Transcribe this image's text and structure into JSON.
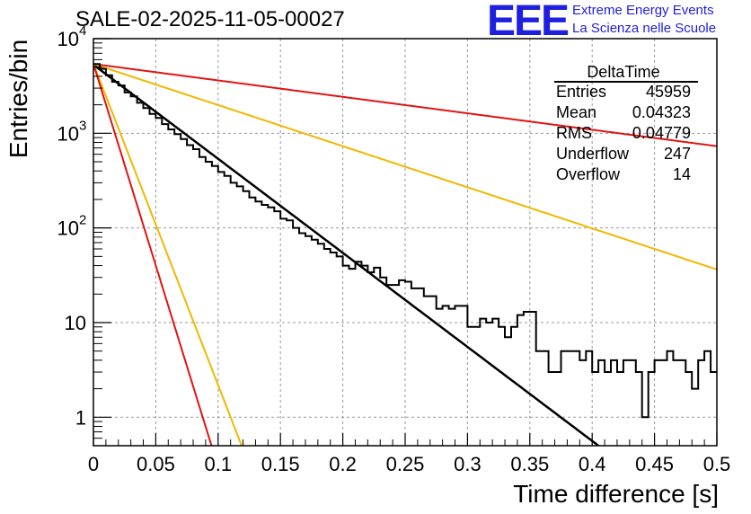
{
  "header": {
    "title": "SALE-02-2025-11-05-00027",
    "logo": "EEE",
    "logo_line1": "Extreme Energy Events",
    "logo_line2": "La Scienza nelle Scuole"
  },
  "stats": {
    "title": "DeltaTime",
    "rows": [
      {
        "key": "Entries",
        "value": "45959"
      },
      {
        "key": "Mean",
        "value": "0.04323"
      },
      {
        "key": "RMS",
        "value": "0.04779"
      },
      {
        "key": "Underflow",
        "value": "247"
      },
      {
        "key": "Overflow",
        "value": "14"
      }
    ]
  },
  "chart_data": {
    "type": "line",
    "title": "SALE-02-2025-11-05-00027",
    "xlabel": "Time difference [s]",
    "ylabel": "Entries/bin",
    "xlim": [
      0,
      0.5
    ],
    "ylim": [
      0.5,
      10000
    ],
    "yscale": "log",
    "grid": true,
    "x_ticks": [
      {
        "v": 0,
        "label": "0"
      },
      {
        "v": 0.05,
        "label": "0.05"
      },
      {
        "v": 0.1,
        "label": "0.1"
      },
      {
        "v": 0.15,
        "label": "0.15"
      },
      {
        "v": 0.2,
        "label": "0.2"
      },
      {
        "v": 0.25,
        "label": "0.25"
      },
      {
        "v": 0.3,
        "label": "0.3"
      },
      {
        "v": 0.35,
        "label": "0.35"
      },
      {
        "v": 0.4,
        "label": "0.4"
      },
      {
        "v": 0.45,
        "label": "0.45"
      },
      {
        "v": 0.5,
        "label": "0.5"
      }
    ],
    "y_ticks": [
      {
        "v": 1,
        "label": "1"
      },
      {
        "v": 10,
        "label": "10"
      },
      {
        "v": 100,
        "label": "10",
        "exp": "2"
      },
      {
        "v": 1000,
        "label": "10",
        "exp": "3"
      },
      {
        "v": 10000,
        "label": "10",
        "exp": "4"
      }
    ],
    "histogram": {
      "name": "DeltaTime",
      "color": "#000000",
      "bin_width": 0.005,
      "counts": [
        5400,
        4800,
        4100,
        3500,
        3200,
        2700,
        2450,
        2100,
        1850,
        1600,
        1450,
        1250,
        1100,
        980,
        870,
        750,
        680,
        560,
        500,
        450,
        390,
        355,
        300,
        275,
        245,
        210,
        190,
        175,
        165,
        150,
        125,
        120,
        100,
        88,
        82,
        75,
        68,
        60,
        55,
        50,
        40,
        37,
        44,
        40,
        34,
        38,
        30,
        25,
        25,
        28,
        27,
        23,
        23,
        19,
        19,
        14,
        15,
        14,
        15,
        15,
        9,
        9,
        11,
        10,
        11,
        9,
        7,
        9,
        12,
        13,
        13,
        5,
        5,
        3,
        3,
        5,
        5,
        5,
        4,
        5,
        3,
        4,
        3,
        4,
        3,
        4,
        4,
        3,
        1,
        3,
        4,
        4,
        5,
        4,
        4,
        3,
        2,
        4,
        5,
        3
      ]
    },
    "series": [
      {
        "name": "fit",
        "color": "#000000",
        "width": 2.5,
        "A": 5300,
        "tau": 0.0437
      },
      {
        "name": "red-slow",
        "color": "#e01414",
        "width": 2,
        "A": 5400,
        "tau": 0.25
      },
      {
        "name": "yellow-slow",
        "color": "#f0b800",
        "width": 2,
        "A": 5400,
        "tau": 0.1
      },
      {
        "name": "yellow-fast",
        "color": "#f0b800",
        "width": 2,
        "A": 5400,
        "tau": 0.0128
      },
      {
        "name": "red-fast",
        "color": "#e01414",
        "width": 2,
        "A": 5400,
        "tau": 0.0102
      }
    ]
  }
}
